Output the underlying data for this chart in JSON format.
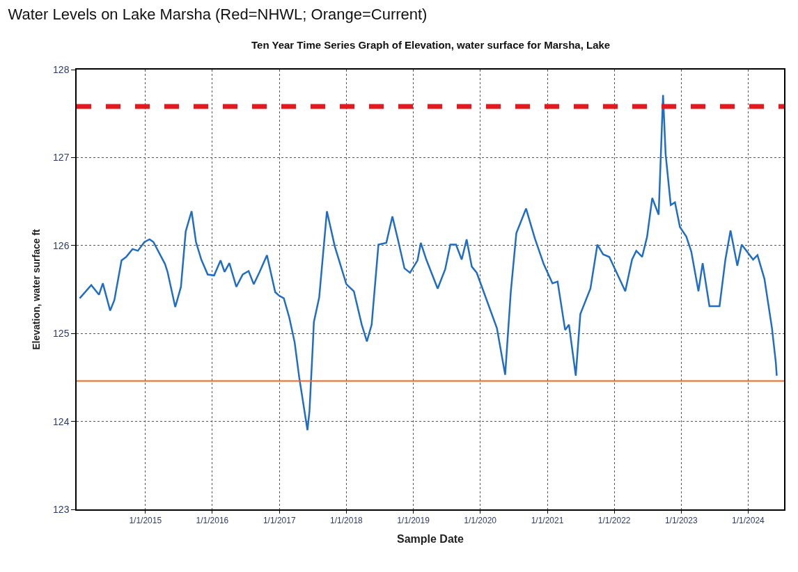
{
  "chart_data": {
    "type": "line",
    "title": "Water Levels on Lake Marsha (Red=NHWL; Orange=Current)",
    "subtitle": "Ten Year Time Series Graph of Elevation, water surface for Marsha, Lake",
    "xlabel": "Sample Date",
    "ylabel": "Elevation, water surface ft",
    "x": [
      "2014-01-08",
      "2014-03-12",
      "2014-04-23",
      "2014-05-14",
      "2014-06-23",
      "2014-07-16",
      "2014-08-24",
      "2014-09-18",
      "2014-10-23",
      "2014-11-21",
      "2014-12-27",
      "2015-01-24",
      "2015-02-14",
      "2015-04-18",
      "2015-05-02",
      "2015-06-13",
      "2015-07-14",
      "2015-08-09",
      "2015-09-10",
      "2015-10-04",
      "2015-11-02",
      "2015-12-07",
      "2016-01-11",
      "2016-02-15",
      "2016-03-08",
      "2016-04-03",
      "2016-05-11",
      "2016-06-15",
      "2016-07-17",
      "2016-08-14",
      "2016-09-15",
      "2016-10-25",
      "2016-12-09",
      "2016-12-30",
      "2017-01-25",
      "2017-02-24",
      "2017-03-25",
      "2017-04-19",
      "2017-06-03",
      "2017-06-14",
      "2017-07-01",
      "2017-07-08",
      "2017-08-06",
      "2017-09-17",
      "2017-10-30",
      "2018-01-01",
      "2018-02-11",
      "2018-03-26",
      "2018-04-23",
      "2018-05-19",
      "2018-06-25",
      "2018-08-07",
      "2018-09-09",
      "2018-10-09",
      "2018-11-14",
      "2018-12-14",
      "2019-01-24",
      "2019-02-11",
      "2019-03-13",
      "2019-05-14",
      "2019-06-24",
      "2019-07-22",
      "2019-08-22",
      "2019-09-22",
      "2019-10-19",
      "2019-11-16",
      "2019-12-13",
      "2020-04-01",
      "2020-05-16",
      "2020-06-16",
      "2020-07-16",
      "2020-09-07",
      "2020-10-25",
      "2020-12-12",
      "2021-01-29",
      "2021-02-26",
      "2021-04-08",
      "2021-04-29",
      "2021-06-05",
      "2021-06-30",
      "2021-08-24",
      "2021-10-01",
      "2021-11-01",
      "2021-12-05",
      "2022-03-02",
      "2022-04-08",
      "2022-05-01",
      "2022-06-02",
      "2022-06-29",
      "2022-07-27",
      "2022-08-31",
      "2022-09-24",
      "2022-10-08",
      "2022-11-05",
      "2022-11-28",
      "2022-12-25",
      "2023-01-29",
      "2023-02-25",
      "2023-04-05",
      "2023-04-28",
      "2023-06-04",
      "2023-07-29",
      "2023-08-30",
      "2023-09-27",
      "2023-11-03",
      "2023-11-27",
      "2024-01-28",
      "2024-02-21",
      "2024-03-30",
      "2024-05-10",
      "2024-05-31",
      "2024-06-05"
    ],
    "series": [
      {
        "color": "#1f6dc6",
        "values": [
          125.4,
          125.55,
          125.44,
          125.57,
          125.26,
          125.38,
          125.83,
          125.87,
          125.96,
          125.94,
          126.04,
          126.07,
          126.04,
          125.79,
          125.7,
          125.3,
          125.53,
          126.16,
          126.39,
          126.04,
          125.84,
          125.67,
          125.66,
          125.83,
          125.7,
          125.8,
          125.53,
          125.67,
          125.71,
          125.56,
          125.7,
          125.89,
          125.47,
          125.43,
          125.4,
          125.18,
          124.9,
          124.5,
          123.9,
          124.12,
          124.82,
          125.13,
          125.41,
          126.39,
          125.99,
          125.56,
          125.48,
          125.1,
          124.91,
          125.1,
          126.01,
          126.03,
          126.33,
          126.07,
          125.74,
          125.69,
          125.83,
          126.03,
          125.84,
          125.51,
          125.73,
          126.01,
          126.01,
          125.84,
          126.07,
          125.76,
          125.69,
          125.06,
          124.53,
          125.48,
          126.14,
          126.42,
          126.08,
          125.79,
          125.57,
          125.59,
          125.04,
          125.1,
          124.52,
          125.22,
          125.51,
          126.01,
          125.9,
          125.87,
          125.48,
          125.84,
          125.94,
          125.87,
          126.1,
          126.54,
          126.35,
          127.71,
          127.04,
          126.46,
          126.49,
          126.21,
          126.1,
          125.93,
          125.48,
          125.8,
          125.31,
          125.31,
          125.84,
          126.17,
          125.77,
          126.01,
          125.84,
          125.89,
          125.62,
          125.06,
          124.67,
          124.52
        ]
      }
    ],
    "xlim": [
      "2013-12-22",
      "2024-07-15"
    ],
    "xticks": [
      {
        "value": "2015-01-01",
        "label": "1/1/2015"
      },
      {
        "value": "2016-01-01",
        "label": "1/1/2016"
      },
      {
        "value": "2017-01-01",
        "label": "1/1/2017"
      },
      {
        "value": "2018-01-01",
        "label": "1/1/2018"
      },
      {
        "value": "2019-01-01",
        "label": "1/1/2019"
      },
      {
        "value": "2020-01-01",
        "label": "1/1/2020"
      },
      {
        "value": "2021-01-01",
        "label": "1/1/2021"
      },
      {
        "value": "2022-01-01",
        "label": "1/1/2022"
      },
      {
        "value": "2023-01-01",
        "label": "1/1/2023"
      },
      {
        "value": "2024-01-01",
        "label": "1/1/2024"
      }
    ],
    "ylim": [
      123,
      128
    ],
    "yticks": [
      123,
      124,
      125,
      126,
      127,
      128
    ],
    "ref_lines": [
      {
        "axis": "y",
        "value": 127.58,
        "color": "#e01a1f",
        "line_style": "dashed"
      },
      {
        "axis": "y",
        "value": 124.46,
        "color": "#f26522",
        "line_style": "solid"
      }
    ],
    "grid": true,
    "marker": "none",
    "line_style": "solid"
  }
}
